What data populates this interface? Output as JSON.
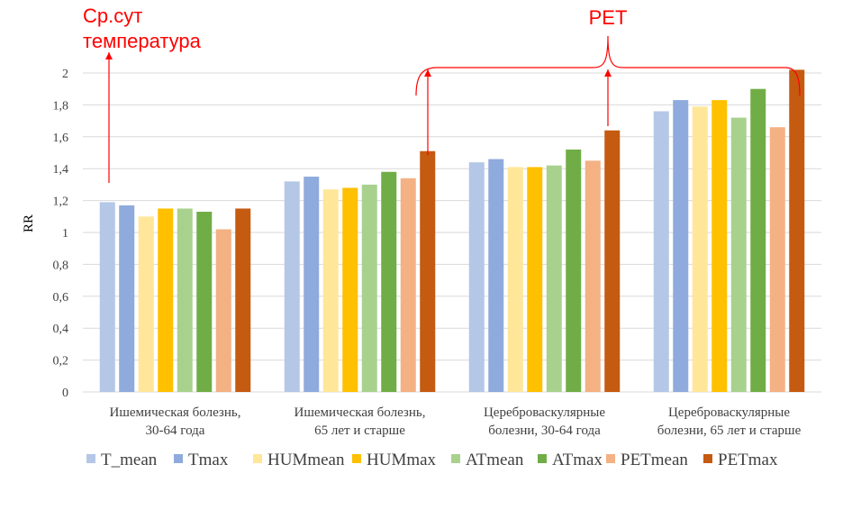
{
  "chart_data": {
    "type": "bar",
    "ylabel": "RR",
    "ylim": [
      0,
      2
    ],
    "ytick_step": 0.2,
    "ytick_labels": [
      "0",
      "0,2",
      "0,4",
      "0,6",
      "0,8",
      "1",
      "1,2",
      "1,4",
      "1,6",
      "1,8",
      "2"
    ],
    "grid": true,
    "legend_position": "bottom",
    "categories": [
      [
        "Ишемическая болезнь,",
        "30-64 года"
      ],
      [
        "Ишемическая болезнь,",
        "65 лет и старше"
      ],
      [
        "Цереброваскулярные",
        "болезни, 30-64 года"
      ],
      [
        "Цереброваскулярные",
        "болезни, 65 лет и старше"
      ]
    ],
    "series": [
      {
        "name": "T_mean",
        "color": "#b4c7e7",
        "values": [
          1.19,
          1.32,
          1.44,
          1.76
        ]
      },
      {
        "name": "Tmax",
        "color": "#8faadc",
        "values": [
          1.17,
          1.35,
          1.46,
          1.83
        ]
      },
      {
        "name": "HUMmean",
        "color": "#ffe699",
        "values": [
          1.1,
          1.27,
          1.41,
          1.79
        ]
      },
      {
        "name": "HUMmax",
        "color": "#ffc000",
        "values": [
          1.15,
          1.28,
          1.41,
          1.83
        ]
      },
      {
        "name": "ATmean",
        "color": "#a9d18e",
        "values": [
          1.15,
          1.3,
          1.42,
          1.72
        ]
      },
      {
        "name": "ATmax",
        "color": "#70ad47",
        "values": [
          1.13,
          1.38,
          1.52,
          1.9
        ]
      },
      {
        "name": "PETmean",
        "color": "#f4b183",
        "values": [
          1.02,
          1.34,
          1.45,
          1.66
        ]
      },
      {
        "name": "PETmax",
        "color": "#c55a11",
        "values": [
          1.15,
          1.51,
          1.64,
          2.02
        ]
      }
    ],
    "annotations": {
      "left_label": [
        "Ср.сут",
        "температура"
      ],
      "right_label": "PET",
      "color": "#ff0000"
    }
  }
}
